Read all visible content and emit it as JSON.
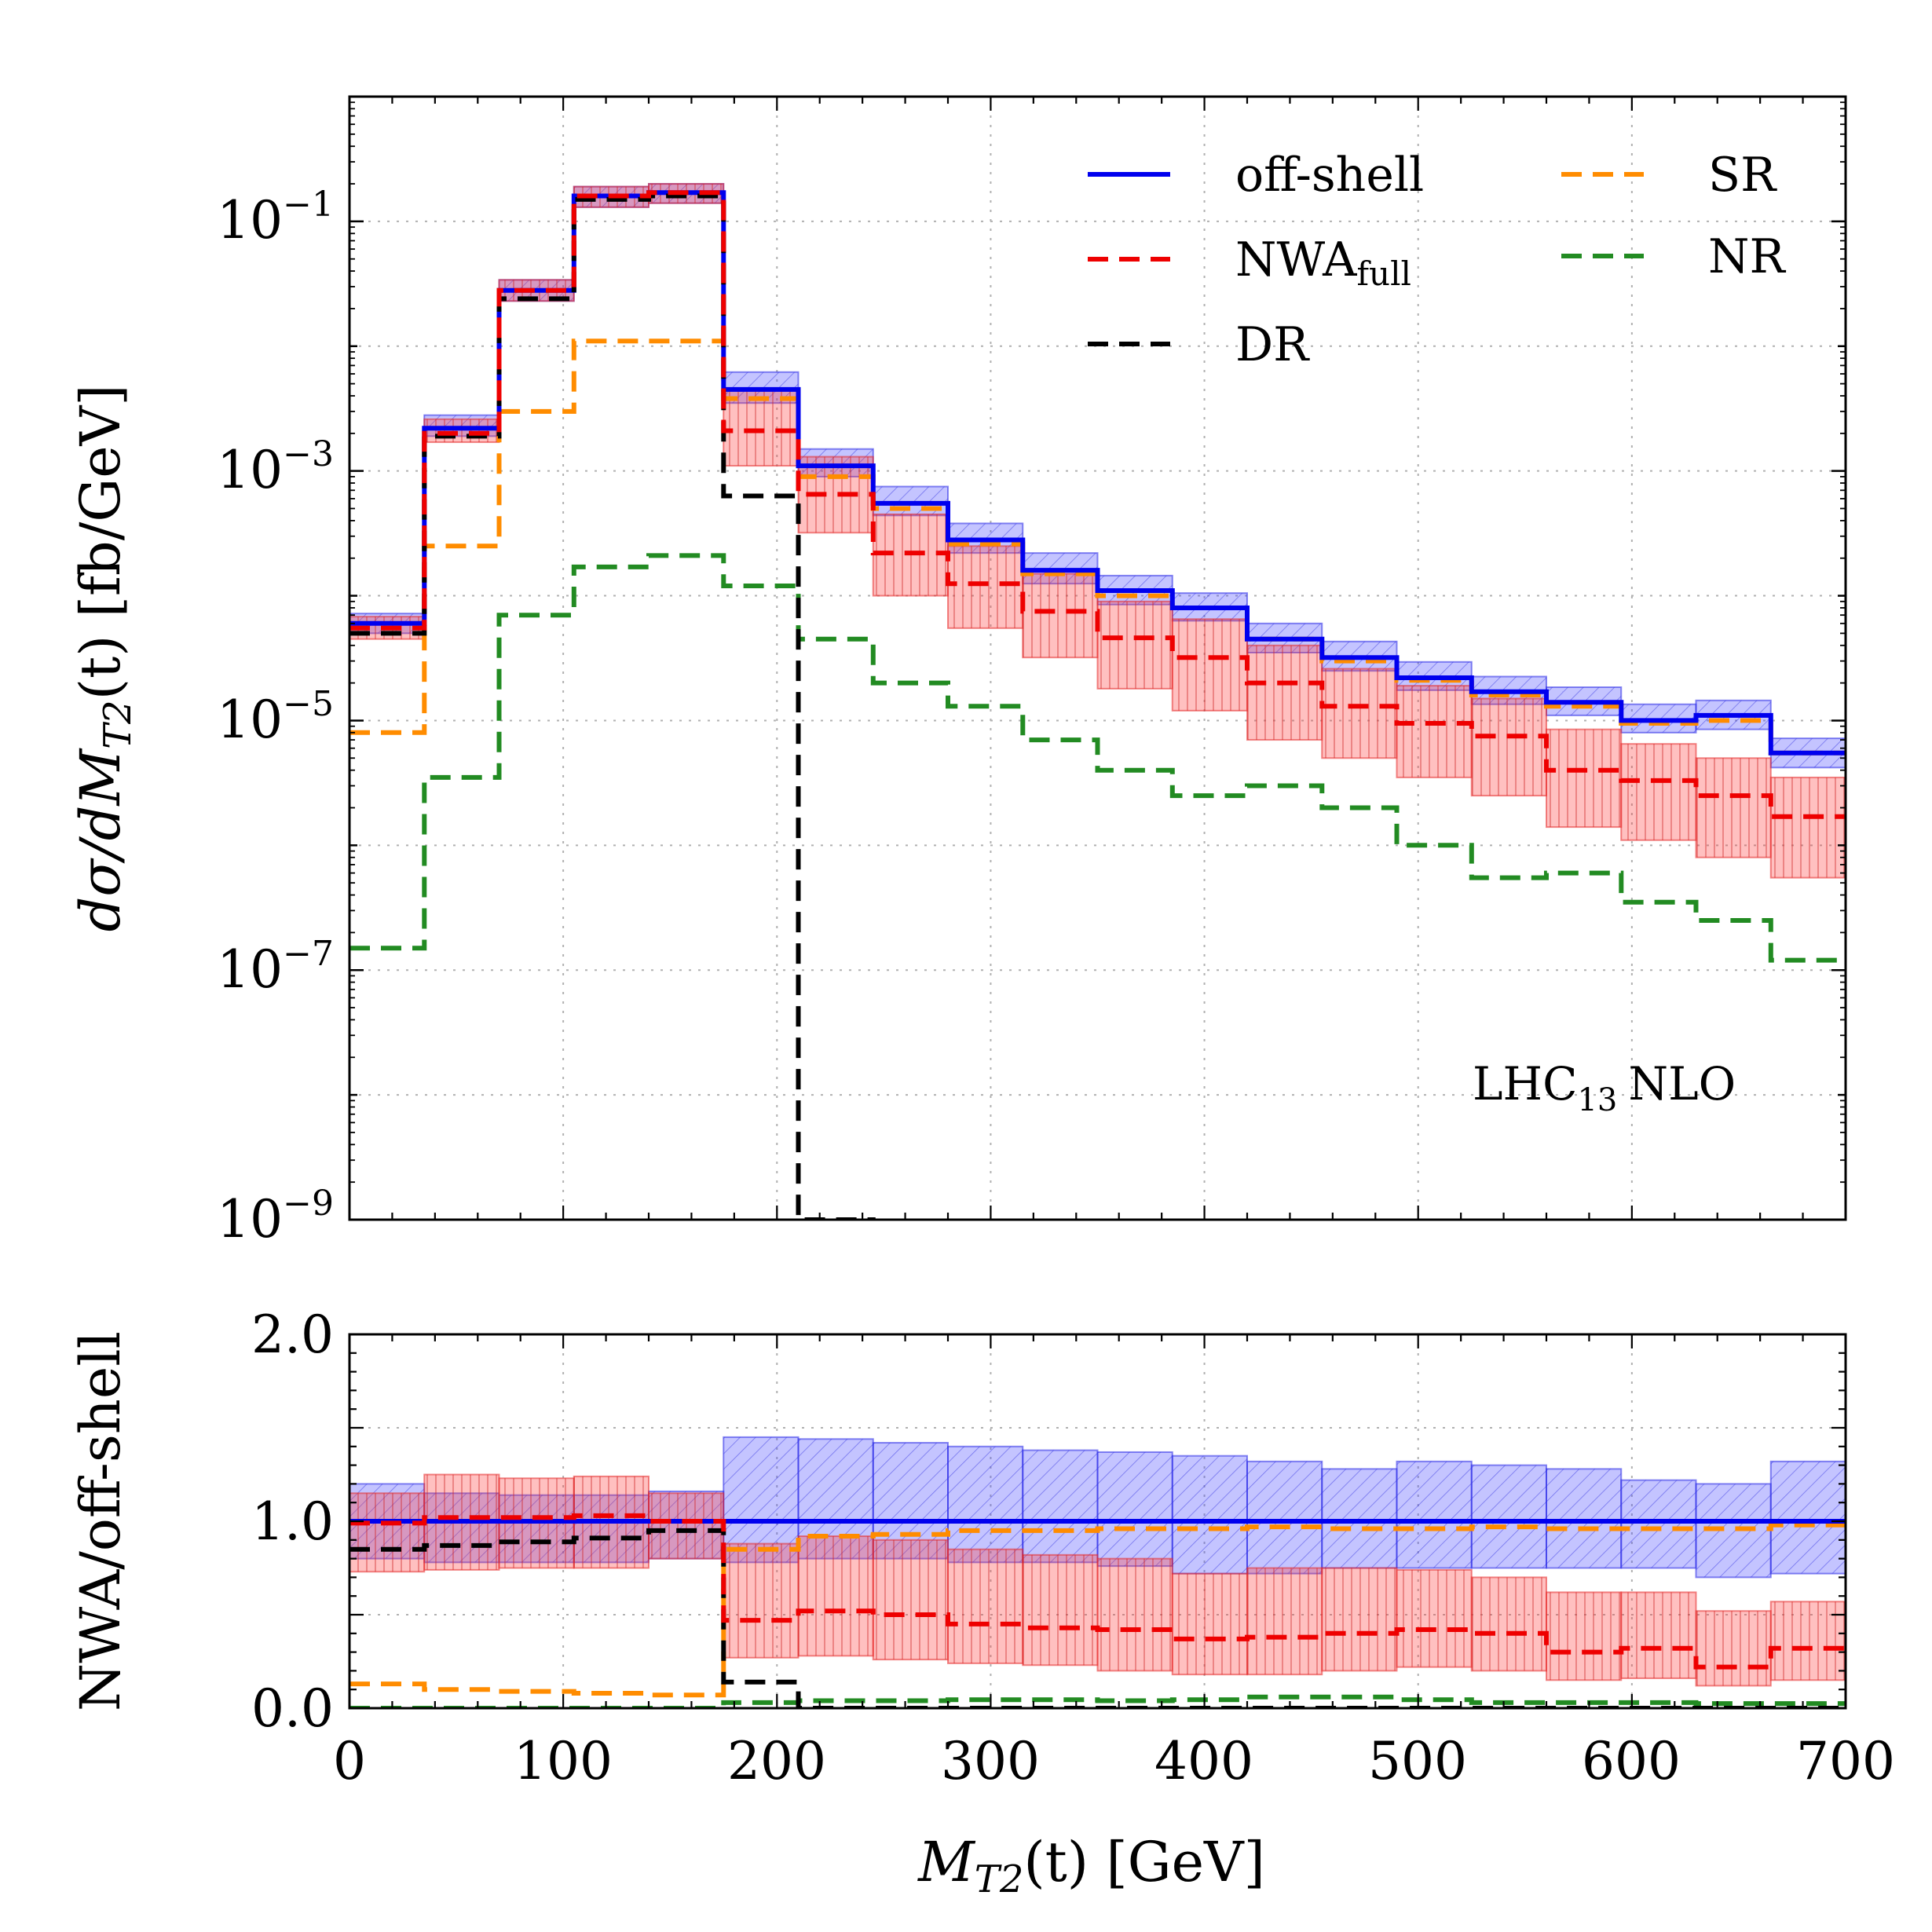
{
  "chart_data": [
    {
      "type": "line",
      "panel": "main",
      "xlabel": "M_T2(t) [GeV]",
      "ylabel": "dσ/dM_T2(t) [fb/GeV]",
      "yscale": "log",
      "xlim": [
        0,
        700
      ],
      "ylim": [
        1e-09,
        1
      ],
      "grid": true,
      "legend": "top-right",
      "bin_edges": [
        0,
        35,
        70,
        105,
        140,
        175,
        210,
        245,
        280,
        315,
        350,
        385,
        420,
        455,
        490,
        525,
        560,
        595,
        630,
        665,
        700
      ],
      "series": [
        {
          "name": "off-shell",
          "color": "#0000ee",
          "style": "solid",
          "values": [
            6e-05,
            0.0022,
            0.028,
            0.16,
            0.17,
            0.0045,
            0.0011,
            0.00055,
            0.00028,
            0.00016,
            0.00011,
            8e-05,
            4.5e-05,
            3.2e-05,
            2.2e-05,
            1.7e-05,
            1.4e-05,
            1e-05,
            1.1e-05,
            5.5e-06
          ],
          "band_low": [
            5e-05,
            0.0019,
            0.023,
            0.13,
            0.14,
            0.0035,
            0.0009,
            0.00044,
            0.00022,
            0.000125,
            8.5e-05,
            6.3e-05,
            3.5e-05,
            2.5e-05,
            1.75e-05,
            1.35e-05,
            1.1e-05,
            8e-06,
            8.5e-06,
            4.2e-06
          ],
          "band_high": [
            7.2e-05,
            0.0028,
            0.034,
            0.19,
            0.2,
            0.0062,
            0.0015,
            0.00075,
            0.00038,
            0.00022,
            0.000145,
            0.000105,
            6e-05,
            4.3e-05,
            2.95e-05,
            2.25e-05,
            1.85e-05,
            1.35e-05,
            1.45e-05,
            7.2e-06
          ]
        },
        {
          "name": "NWA_full",
          "color": "#ee0000",
          "style": "dashed",
          "values": [
            5.5e-05,
            0.002,
            0.028,
            0.16,
            0.17,
            0.0021,
            0.00065,
            0.00022,
            0.000125,
            7.5e-05,
            4.6e-05,
            3.2e-05,
            2e-05,
            1.3e-05,
            9.5e-06,
            7.5e-06,
            4e-06,
            3.3e-06,
            2.5e-06,
            1.7e-06
          ],
          "band_low": [
            4.5e-05,
            0.0017,
            0.023,
            0.13,
            0.14,
            0.0011,
            0.00032,
            0.0001,
            5.5e-05,
            3.2e-05,
            1.8e-05,
            1.2e-05,
            7e-06,
            5e-06,
            3.5e-06,
            2.5e-06,
            1.4e-06,
            1.1e-06,
            8e-07,
            5.5e-07
          ],
          "band_high": [
            6.8e-05,
            0.0026,
            0.034,
            0.19,
            0.2,
            0.0044,
            0.0013,
            0.00045,
            0.00025,
            0.00015,
            9e-05,
            6.5e-05,
            4e-05,
            2.6e-05,
            1.9e-05,
            1.5e-05,
            8.5e-06,
            6.5e-06,
            5e-06,
            3.5e-06
          ]
        },
        {
          "name": "DR",
          "color": "#000000",
          "style": "dashed",
          "values": [
            5e-05,
            0.0019,
            0.024,
            0.15,
            0.16,
            0.00063,
            1e-09,
            null,
            null,
            null,
            null,
            null,
            null,
            null,
            null,
            null,
            null,
            null,
            null,
            null
          ]
        },
        {
          "name": "SR",
          "color": "#ff8c00",
          "style": "dashed",
          "values": [
            8e-06,
            0.00025,
            0.003,
            0.011,
            0.011,
            0.0038,
            0.0009,
            0.0005,
            0.00026,
            0.00015,
            0.0001,
            8e-05,
            4.5e-05,
            3e-05,
            2.1e-05,
            1.6e-05,
            1.3e-05,
            9.5e-06,
            1e-05,
            5.5e-06
          ]
        },
        {
          "name": "NR",
          "color": "#228b22",
          "style": "dashed",
          "values": [
            1.5e-07,
            3.5e-06,
            7e-05,
            0.00017,
            0.00021,
            0.00012,
            4.5e-05,
            2e-05,
            1.3e-05,
            7e-06,
            4e-06,
            2.5e-06,
            3e-06,
            2e-06,
            1e-06,
            5.5e-07,
            6e-07,
            3.5e-07,
            2.5e-07,
            1.2e-07
          ]
        }
      ],
      "annotation": "LHC13 NLO"
    },
    {
      "type": "line",
      "panel": "ratio",
      "xlabel": "M_T2(t) [GeV]",
      "ylabel": "NWA/off-shell",
      "xlim": [
        0,
        700
      ],
      "ylim": [
        0,
        2
      ],
      "grid": true,
      "bin_edges": [
        0,
        35,
        70,
        105,
        140,
        175,
        210,
        245,
        280,
        315,
        350,
        385,
        420,
        455,
        490,
        525,
        560,
        595,
        630,
        665,
        700
      ],
      "series": [
        {
          "name": "off-shell",
          "color": "#0000ee",
          "style": "solid",
          "values": [
            1,
            1,
            1,
            1,
            1,
            1,
            1,
            1,
            1,
            1,
            1,
            1,
            1,
            1,
            1,
            1,
            1,
            1,
            1,
            1
          ],
          "band_low": [
            0.8,
            0.78,
            0.78,
            0.78,
            0.8,
            0.78,
            0.8,
            0.8,
            0.78,
            0.78,
            0.76,
            0.72,
            0.72,
            0.75,
            0.75,
            0.75,
            0.75,
            0.75,
            0.7,
            0.72
          ],
          "band_high": [
            1.2,
            1.15,
            1.14,
            1.14,
            1.16,
            1.45,
            1.44,
            1.42,
            1.4,
            1.38,
            1.37,
            1.35,
            1.32,
            1.28,
            1.32,
            1.3,
            1.28,
            1.22,
            1.2,
            1.32
          ]
        },
        {
          "name": "NWA_full",
          "color": "#ee0000",
          "style": "dashed",
          "values": [
            0.99,
            1.02,
            1.02,
            1.03,
            1.0,
            0.47,
            0.52,
            0.5,
            0.45,
            0.43,
            0.42,
            0.37,
            0.38,
            0.4,
            0.42,
            0.4,
            0.3,
            0.32,
            0.22,
            0.32
          ],
          "band_low": [
            0.73,
            0.74,
            0.75,
            0.75,
            0.8,
            0.27,
            0.28,
            0.26,
            0.24,
            0.23,
            0.2,
            0.18,
            0.18,
            0.2,
            0.22,
            0.2,
            0.15,
            0.16,
            0.12,
            0.15
          ],
          "band_high": [
            1.15,
            1.25,
            1.23,
            1.24,
            1.15,
            0.88,
            0.92,
            0.9,
            0.85,
            0.82,
            0.8,
            0.72,
            0.75,
            0.75,
            0.74,
            0.7,
            0.62,
            0.62,
            0.52,
            0.57
          ]
        },
        {
          "name": "DR",
          "color": "#000000",
          "style": "dashed",
          "values": [
            0.85,
            0.87,
            0.89,
            0.91,
            0.95,
            0.14,
            0.0,
            0.0,
            0.0,
            0.0,
            0.0,
            0.0,
            0.0,
            0.0,
            0.0,
            0.0,
            0.0,
            0.0,
            0.0,
            0.0
          ]
        },
        {
          "name": "SR",
          "color": "#ff8c00",
          "style": "dashed",
          "values": [
            0.13,
            0.1,
            0.09,
            0.08,
            0.07,
            0.85,
            0.92,
            0.93,
            0.95,
            0.95,
            0.96,
            0.96,
            0.97,
            0.96,
            0.96,
            0.97,
            0.96,
            0.96,
            0.96,
            0.98
          ]
        },
        {
          "name": "NR",
          "color": "#228b22",
          "style": "dashed",
          "values": [
            0.0,
            0.0,
            0.0,
            0.0,
            0.0,
            0.03,
            0.04,
            0.04,
            0.045,
            0.045,
            0.04,
            0.045,
            0.06,
            0.06,
            0.045,
            0.03,
            0.03,
            0.03,
            0.025,
            0.025
          ]
        }
      ]
    }
  ],
  "labels": {
    "main_ytick_labels": [
      "10",
      "10",
      "10",
      "10",
      "10"
    ],
    "main_ytick_exponents": [
      "−9",
      "−7",
      "−5",
      "−3",
      "−1"
    ],
    "ratio_ytick_labels": [
      "0.0",
      "1.0",
      "2.0"
    ],
    "xtick_labels": [
      "0",
      "100",
      "200",
      "300",
      "400",
      "500",
      "600",
      "700"
    ],
    "xtitle_main": "M",
    "xtitle_sub": "T2",
    "xtitle_rest": "(t) [GeV]",
    "ytitle_main": "dσ/dM",
    "ytitle_sub": "T2",
    "ytitle_rest": "(t) [fb/GeV]",
    "ratio_ytitle": "NWA/off-shell",
    "legend_offshell": "off-shell",
    "legend_nwa": "NWA",
    "legend_nwa_sub": "full",
    "legend_dr": "DR",
    "legend_sr": "SR",
    "legend_nr": "NR",
    "annot_main": "LHC",
    "annot_sub": "13",
    "annot_rest": "NLO"
  }
}
